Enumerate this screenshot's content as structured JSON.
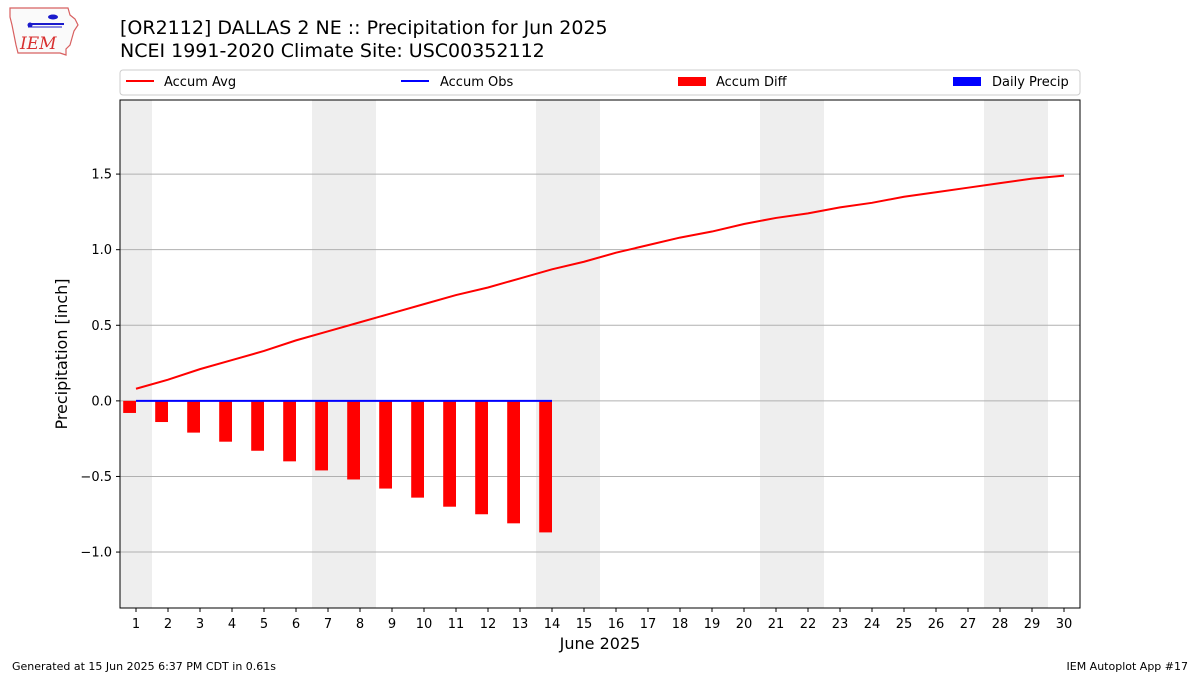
{
  "header": {
    "title_line1": "[OR2112] DALLAS 2 NE :: Precipitation for Jun 2025",
    "title_line2": "NCEI 1991-2020 Climate Site: USC00352112"
  },
  "logo": {
    "text": "IEM"
  },
  "footer": {
    "left": "Generated at 15 Jun 2025 6:37 PM CDT in 0.61s",
    "right": "IEM Autoplot App #17"
  },
  "colors": {
    "accum_avg": "#ff0000",
    "accum_obs": "#0000ff",
    "accum_diff": "#ff0000",
    "daily_precip": "#0000ff",
    "weekend_band": "#eeeeee",
    "grid": "#b0b0b0"
  },
  "chart_data": {
    "type": "line",
    "xlabel": "June 2025",
    "ylabel": "Precipitation [inch]",
    "xlim": [
      0.5,
      30.5
    ],
    "ylim": [
      -1.37,
      1.99
    ],
    "x_ticks": [
      1,
      2,
      3,
      4,
      5,
      6,
      7,
      8,
      9,
      10,
      11,
      12,
      13,
      14,
      15,
      16,
      17,
      18,
      19,
      20,
      21,
      22,
      23,
      24,
      25,
      26,
      27,
      28,
      29,
      30
    ],
    "y_ticks": [
      -1.0,
      -0.5,
      0.0,
      0.5,
      1.0,
      1.5
    ],
    "y_tick_labels": [
      "−1.0",
      "−0.5",
      "0.0",
      "0.5",
      "1.0",
      "1.5"
    ],
    "grid": "horizontal",
    "legend_position": "top",
    "weekend_bands": [
      [
        0.5,
        1.5
      ],
      [
        6.5,
        8.5
      ],
      [
        13.5,
        15.5
      ],
      [
        20.5,
        22.5
      ],
      [
        27.5,
        29.5
      ]
    ],
    "legend": [
      "Accum Avg",
      "Accum Obs",
      "Accum Diff",
      "Daily Precip"
    ],
    "series": [
      {
        "name": "Accum Avg",
        "kind": "line",
        "color": "#ff0000",
        "x": [
          1,
          2,
          3,
          4,
          5,
          6,
          7,
          8,
          9,
          10,
          11,
          12,
          13,
          14,
          15,
          16,
          17,
          18,
          19,
          20,
          21,
          22,
          23,
          24,
          25,
          26,
          27,
          28,
          29,
          30
        ],
        "values": [
          0.08,
          0.14,
          0.21,
          0.27,
          0.33,
          0.4,
          0.46,
          0.52,
          0.58,
          0.64,
          0.7,
          0.75,
          0.81,
          0.87,
          0.92,
          0.98,
          1.03,
          1.08,
          1.12,
          1.17,
          1.21,
          1.24,
          1.28,
          1.31,
          1.35,
          1.38,
          1.41,
          1.44,
          1.47,
          1.49
        ]
      },
      {
        "name": "Accum Obs",
        "kind": "line",
        "color": "#0000ff",
        "x": [
          1,
          2,
          3,
          4,
          5,
          6,
          7,
          8,
          9,
          10,
          11,
          12,
          13,
          14
        ],
        "values": [
          0,
          0,
          0,
          0,
          0,
          0,
          0,
          0,
          0,
          0,
          0,
          0,
          0,
          0
        ]
      },
      {
        "name": "Accum Diff",
        "kind": "bar",
        "color": "#ff0000",
        "x": [
          1,
          2,
          3,
          4,
          5,
          6,
          7,
          8,
          9,
          10,
          11,
          12,
          13,
          14
        ],
        "values": [
          -0.08,
          -0.14,
          -0.21,
          -0.27,
          -0.33,
          -0.4,
          -0.46,
          -0.52,
          -0.58,
          -0.64,
          -0.7,
          -0.75,
          -0.81,
          -0.87
        ]
      },
      {
        "name": "Daily Precip",
        "kind": "bar",
        "color": "#0000ff",
        "x": [
          1,
          2,
          3,
          4,
          5,
          6,
          7,
          8,
          9,
          10,
          11,
          12,
          13,
          14
        ],
        "values": [
          0,
          0,
          0,
          0,
          0,
          0,
          0,
          0,
          0,
          0,
          0,
          0,
          0,
          0
        ]
      }
    ]
  }
}
